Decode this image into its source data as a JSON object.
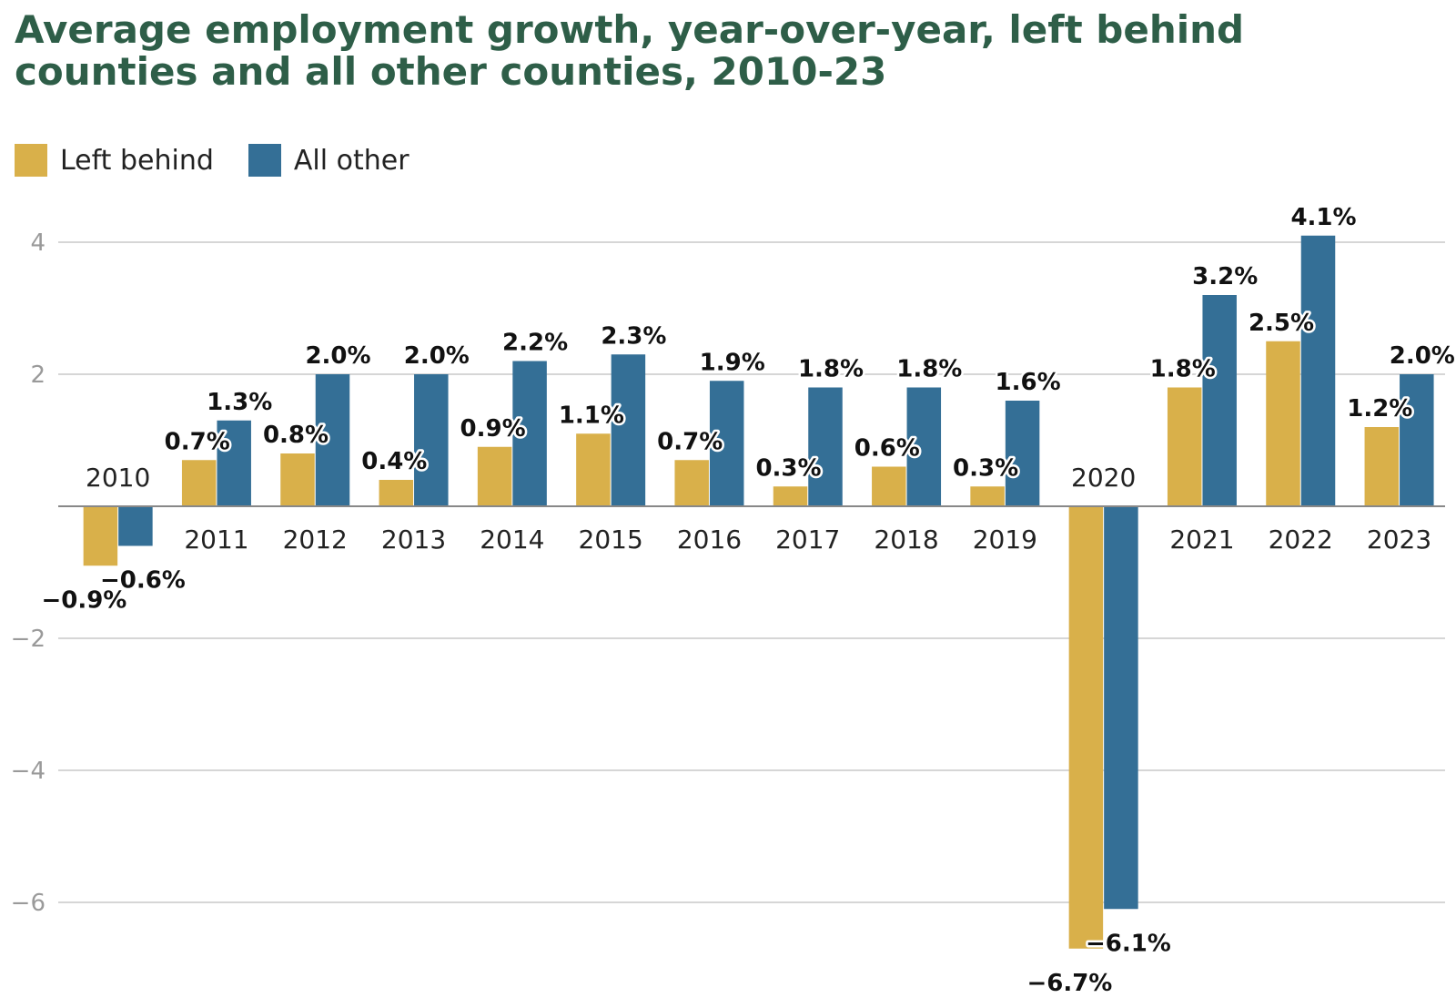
{
  "chart_data": {
    "type": "bar",
    "title": "Average employment growth, year-over-year, left behind counties and all other counties, 2010-23",
    "categories": [
      "2010",
      "2011",
      "2012",
      "2013",
      "2014",
      "2015",
      "2016",
      "2017",
      "2018",
      "2019",
      "2020",
      "2021",
      "2022",
      "2023"
    ],
    "series": [
      {
        "name": "Left behind",
        "color": "#d9b04a",
        "values": [
          -0.9,
          0.7,
          0.8,
          0.4,
          0.9,
          1.1,
          0.7,
          0.3,
          0.6,
          0.3,
          -6.7,
          1.8,
          2.5,
          1.2
        ],
        "labels": [
          "−0.9%",
          "0.7%",
          "0.8%",
          "0.4%",
          "0.9%",
          "1.1%",
          "0.7%",
          "0.3%",
          "0.6%",
          "0.3%",
          "−6.7%",
          "1.8%",
          "2.5%",
          "1.2%"
        ]
      },
      {
        "name": "All other",
        "color": "#346f96",
        "values": [
          -0.6,
          1.3,
          2.0,
          2.0,
          2.2,
          2.3,
          1.9,
          1.8,
          1.8,
          1.6,
          -6.1,
          3.2,
          4.1,
          2.0
        ],
        "labels": [
          "−0.6%",
          "1.3%",
          "2.0%",
          "2.0%",
          "2.2%",
          "2.3%",
          "1.9%",
          "1.8%",
          "1.8%",
          "1.6%",
          "−6.1%",
          "3.2%",
          "4.1%",
          "2.0%"
        ]
      }
    ],
    "yticks": [
      -6,
      -4,
      -2,
      2,
      4
    ],
    "ytick_labels": [
      "−6",
      "−4",
      "−2",
      "2",
      "4"
    ],
    "ylim": [
      -7.5,
      4.5
    ],
    "grid": true,
    "legend_position": "top-left"
  }
}
